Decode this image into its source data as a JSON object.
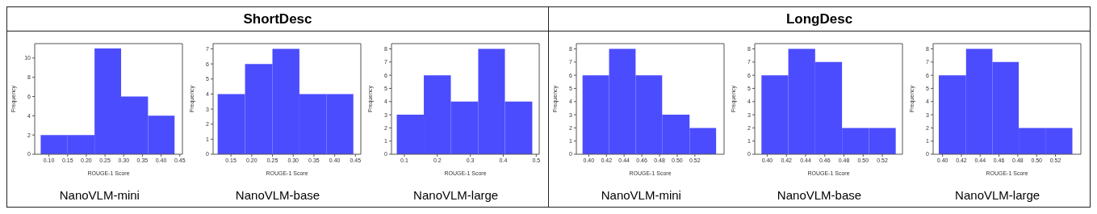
{
  "chart_data": [
    {
      "type": "histogram",
      "annotations": [
        "ShortDesc"
      ],
      "title": "NanoVLM-mini",
      "xlabel": "ROUGE-1 Score",
      "ylabel": "Frequency",
      "color": "#4c4cff",
      "bins": [
        0.078,
        0.15,
        0.222,
        0.293,
        0.365,
        0.436
      ],
      "values": [
        2,
        2,
        11,
        6,
        4
      ],
      "xlim": [
        0.062,
        0.457
      ],
      "ylim": [
        0,
        11.5
      ],
      "xticks": [
        {
          "value": 0.1,
          "label": "0.10"
        },
        {
          "value": 0.15,
          "label": "0.15"
        },
        {
          "value": 0.2,
          "label": "0.20"
        },
        {
          "value": 0.25,
          "label": "0.25"
        },
        {
          "value": 0.3,
          "label": "0.30"
        },
        {
          "value": 0.35,
          "label": "0.35"
        },
        {
          "value": 0.4,
          "label": "0.40"
        },
        {
          "value": 0.45,
          "label": "0.45"
        }
      ],
      "yticks": [
        0,
        2,
        4,
        6,
        8,
        10
      ],
      "grid": false
    },
    {
      "type": "histogram",
      "title": "NanoVLM-base",
      "xlabel": "ROUGE-1 Score",
      "ylabel": "Frequency",
      "color": "#4c4cff",
      "bins": [
        0.118,
        0.184,
        0.25,
        0.315,
        0.38,
        0.445
      ],
      "values": [
        4,
        6,
        7,
        4,
        4
      ],
      "xlim": [
        0.107,
        0.463
      ],
      "ylim": [
        0,
        7.35
      ],
      "xticks": [
        {
          "value": 0.15,
          "label": "0.15"
        },
        {
          "value": 0.2,
          "label": "0.20"
        },
        {
          "value": 0.25,
          "label": "0.25"
        },
        {
          "value": 0.3,
          "label": "0.30"
        },
        {
          "value": 0.35,
          "label": "0.35"
        },
        {
          "value": 0.4,
          "label": "0.40"
        },
        {
          "value": 0.45,
          "label": "0.45"
        }
      ],
      "yticks": [
        0,
        1,
        2,
        3,
        4,
        5,
        6,
        7
      ],
      "grid": false
    },
    {
      "type": "histogram",
      "title": "NanoVLM-large",
      "xlabel": "ROUGE-1 Score",
      "ylabel": "Frequency",
      "color": "#4c4cff",
      "bins": [
        0.077,
        0.159,
        0.241,
        0.324,
        0.405,
        0.488
      ],
      "values": [
        3,
        6,
        4,
        8,
        4
      ],
      "xlim": [
        0.061,
        0.509
      ],
      "ylim": [
        0,
        8.4
      ],
      "xticks": [
        0.1,
        0.2,
        0.3,
        0.4,
        0.5
      ],
      "yticks": [
        0,
        1,
        2,
        3,
        4,
        5,
        6,
        7,
        8
      ],
      "grid": false
    },
    {
      "type": "histogram",
      "annotations": [
        "LongDesc"
      ],
      "title": "NanoVLM-mini",
      "xlabel": "ROUGE-1 Score",
      "ylabel": "Frequency",
      "color": "#4c4cff",
      "bins": [
        0.393,
        0.423,
        0.453,
        0.483,
        0.514,
        0.544
      ],
      "values": [
        6,
        8,
        6,
        3,
        2
      ],
      "xlim": [
        0.386,
        0.553
      ],
      "ylim": [
        0,
        8.4
      ],
      "xticks": [
        {
          "value": 0.4,
          "label": "0.40"
        },
        {
          "value": 0.42,
          "label": "0.42"
        },
        {
          "value": 0.44,
          "label": "0.44"
        },
        {
          "value": 0.46,
          "label": "0.46"
        },
        {
          "value": 0.48,
          "label": "0.48"
        },
        {
          "value": 0.5,
          "label": "0.50"
        },
        {
          "value": 0.52,
          "label": "0.52"
        }
      ],
      "yticks": [
        0,
        1,
        2,
        3,
        4,
        5,
        6,
        7,
        8
      ],
      "grid": false
    },
    {
      "type": "histogram",
      "title": "NanoVLM-base",
      "xlabel": "ROUGE-1 Score",
      "ylabel": "Frequency",
      "color": "#4c4cff",
      "bins": [
        0.394,
        0.422,
        0.45,
        0.478,
        0.506,
        0.534
      ],
      "values": [
        6,
        8,
        7,
        2,
        2
      ],
      "xlim": [
        0.387,
        0.541
      ],
      "ylim": [
        0,
        8.4
      ],
      "xticks": [
        {
          "value": 0.4,
          "label": "0.40"
        },
        {
          "value": 0.42,
          "label": "0.42"
        },
        {
          "value": 0.44,
          "label": "0.44"
        },
        {
          "value": 0.46,
          "label": "0.46"
        },
        {
          "value": 0.48,
          "label": "0.48"
        },
        {
          "value": 0.5,
          "label": "0.50"
        },
        {
          "value": 0.52,
          "label": "0.52"
        }
      ],
      "yticks": [
        0,
        1,
        2,
        3,
        4,
        5,
        6,
        7,
        8
      ],
      "grid": false
    },
    {
      "type": "histogram",
      "title": "NanoVLM-large",
      "xlabel": "ROUGE-1 Score",
      "ylabel": "Frequency",
      "color": "#4c4cff",
      "bins": [
        0.396,
        0.425,
        0.453,
        0.481,
        0.51,
        0.538
      ],
      "values": [
        6,
        8,
        7,
        2,
        2
      ],
      "xlim": [
        0.39,
        0.547
      ],
      "ylim": [
        0,
        8.4
      ],
      "xticks": [
        {
          "value": 0.4,
          "label": "0.40"
        },
        {
          "value": 0.42,
          "label": "0.42"
        },
        {
          "value": 0.44,
          "label": "0.44"
        },
        {
          "value": 0.46,
          "label": "0.46"
        },
        {
          "value": 0.48,
          "label": "0.48"
        },
        {
          "value": 0.5,
          "label": "0.50"
        },
        {
          "value": 0.52,
          "label": "0.52"
        }
      ],
      "yticks": [
        0,
        1,
        2,
        3,
        4,
        5,
        6,
        7,
        8
      ],
      "grid": false
    }
  ]
}
